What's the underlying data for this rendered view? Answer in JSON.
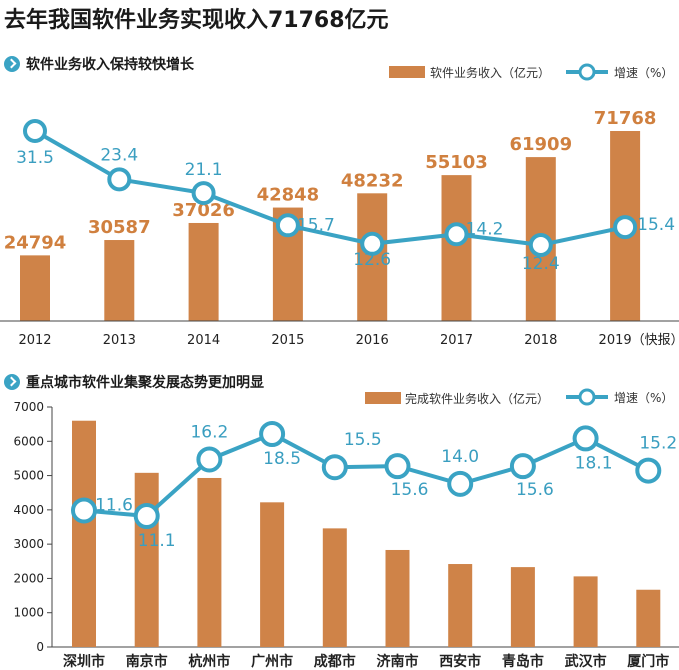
{
  "title": "去年我国软件业务实现收入71768亿元",
  "colors": {
    "bar": "#cf8348",
    "line": "#3aa3c4",
    "label_bar": "#d0803f",
    "label_line": "#3a9ec0",
    "axis": "#444444"
  },
  "chart_data": [
    {
      "type": "bar+line",
      "title": "软件业务收入保持较快增长",
      "categories": [
        "2012",
        "2013",
        "2014",
        "2015",
        "2016",
        "2017",
        "2018",
        "2019（快报）"
      ],
      "series": [
        {
          "name": "软件业务收入（亿元）",
          "type": "bar",
          "values": [
            24794,
            30587,
            37026,
            42848,
            48232,
            55103,
            61909,
            71768
          ]
        },
        {
          "name": "增速（%）",
          "type": "line",
          "values": [
            31.5,
            23.4,
            21.1,
            15.7,
            12.6,
            14.2,
            12.4,
            15.4
          ]
        }
      ]
    },
    {
      "type": "bar+line",
      "title": "重点城市软件业集聚发展态势更加明显",
      "categories": [
        "深圳市",
        "南京市",
        "杭州市",
        "广州市",
        "成都市",
        "济南市",
        "西安市",
        "青岛市",
        "武汉市",
        "厦门市"
      ],
      "yticks": [
        "0",
        "1000",
        "2000",
        "3000",
        "4000",
        "5000",
        "6000",
        "7000"
      ],
      "ylim": [
        0,
        7000
      ],
      "series": [
        {
          "name": "完成软件业务收入（亿元）",
          "type": "bar",
          "values": [
            6600,
            5080,
            4930,
            4220,
            3460,
            2830,
            2420,
            2330,
            2060,
            1670
          ]
        },
        {
          "name": "增速（%）",
          "type": "line",
          "values": [
            11.6,
            11.1,
            16.2,
            18.5,
            15.5,
            15.6,
            14.0,
            15.6,
            18.1,
            15.2
          ]
        }
      ]
    }
  ]
}
